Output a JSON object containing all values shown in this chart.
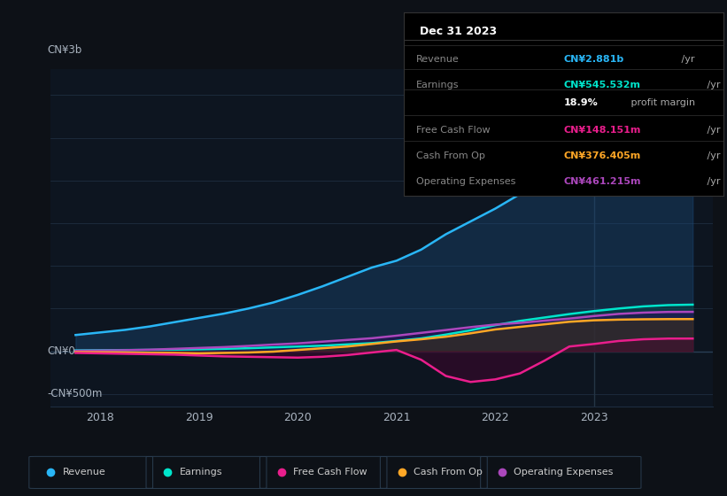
{
  "bg_color": "#0d1117",
  "plot_bg_color": "#0d1520",
  "grid_color": "#1e2d40",
  "text_color": "#aab4c0",
  "ylabel_top": "CN¥3b",
  "ylabel_bottom": "-CN¥500m",
  "ylabel_zero": "CN¥0",
  "yticks": [
    -500000000,
    0,
    500000000,
    1000000000,
    1500000000,
    2000000000,
    2500000000,
    3000000000
  ],
  "ylim": [
    -650000000,
    3300000000
  ],
  "xlim": [
    2017.5,
    2024.2
  ],
  "xtick_labels": [
    "2018",
    "2019",
    "2020",
    "2021",
    "2022",
    "2023"
  ],
  "xtick_positions": [
    2018,
    2019,
    2020,
    2021,
    2022,
    2023
  ],
  "series": {
    "revenue": {
      "color": "#29b6f6",
      "fill_color": "#1a4a7a",
      "label": "Revenue",
      "x": [
        2017.75,
        2018.0,
        2018.25,
        2018.5,
        2018.75,
        2019.0,
        2019.25,
        2019.5,
        2019.75,
        2020.0,
        2020.25,
        2020.5,
        2020.75,
        2021.0,
        2021.25,
        2021.5,
        2021.75,
        2022.0,
        2022.25,
        2022.5,
        2022.75,
        2023.0,
        2023.25,
        2023.5,
        2023.75,
        2024.0
      ],
      "y": [
        190000000,
        220000000,
        250000000,
        290000000,
        340000000,
        390000000,
        440000000,
        500000000,
        570000000,
        660000000,
        760000000,
        870000000,
        980000000,
        1060000000,
        1190000000,
        1370000000,
        1520000000,
        1670000000,
        1840000000,
        2060000000,
        2290000000,
        2510000000,
        2660000000,
        2780000000,
        2850000000,
        2881000000
      ]
    },
    "earnings": {
      "color": "#00e5cc",
      "fill_color": "#004d44",
      "label": "Earnings",
      "x": [
        2017.75,
        2018.0,
        2018.25,
        2018.5,
        2018.75,
        2019.0,
        2019.25,
        2019.5,
        2019.75,
        2020.0,
        2020.25,
        2020.5,
        2020.75,
        2021.0,
        2021.25,
        2021.5,
        2021.75,
        2022.0,
        2022.25,
        2022.5,
        2022.75,
        2023.0,
        2023.25,
        2023.5,
        2023.75,
        2024.0
      ],
      "y": [
        10000000,
        12000000,
        14000000,
        16000000,
        18000000,
        22000000,
        28000000,
        35000000,
        45000000,
        55000000,
        65000000,
        80000000,
        95000000,
        120000000,
        150000000,
        195000000,
        245000000,
        305000000,
        355000000,
        395000000,
        435000000,
        470000000,
        500000000,
        525000000,
        540000000,
        545532000
      ]
    },
    "free_cash_flow": {
      "color": "#e91e8c",
      "fill_color": "#500030",
      "label": "Free Cash Flow",
      "x": [
        2017.75,
        2018.0,
        2018.25,
        2018.5,
        2018.75,
        2019.0,
        2019.25,
        2019.5,
        2019.75,
        2020.0,
        2020.25,
        2020.5,
        2020.75,
        2021.0,
        2021.25,
        2021.5,
        2021.75,
        2022.0,
        2022.25,
        2022.5,
        2022.75,
        2023.0,
        2023.25,
        2023.5,
        2023.75,
        2024.0
      ],
      "y": [
        -20000000,
        -25000000,
        -30000000,
        -35000000,
        -40000000,
        -50000000,
        -60000000,
        -65000000,
        -70000000,
        -75000000,
        -65000000,
        -45000000,
        -15000000,
        15000000,
        -100000000,
        -290000000,
        -360000000,
        -330000000,
        -260000000,
        -110000000,
        55000000,
        85000000,
        120000000,
        140000000,
        148000000,
        148151000
      ]
    },
    "cash_from_op": {
      "color": "#ffa726",
      "fill_color": "#4d3500",
      "label": "Cash From Op",
      "x": [
        2017.75,
        2018.0,
        2018.25,
        2018.5,
        2018.75,
        2019.0,
        2019.25,
        2019.5,
        2019.75,
        2020.0,
        2020.25,
        2020.5,
        2020.75,
        2021.0,
        2021.25,
        2021.5,
        2021.75,
        2022.0,
        2022.25,
        2022.5,
        2022.75,
        2023.0,
        2023.25,
        2023.5,
        2023.75,
        2024.0
      ],
      "y": [
        -10000000,
        -12000000,
        -15000000,
        -18000000,
        -20000000,
        -25000000,
        -20000000,
        -15000000,
        -5000000,
        15000000,
        35000000,
        55000000,
        85000000,
        115000000,
        140000000,
        170000000,
        210000000,
        255000000,
        285000000,
        315000000,
        345000000,
        362000000,
        370000000,
        374000000,
        376000000,
        376405000
      ]
    },
    "operating_expenses": {
      "color": "#ab47bc",
      "fill_color": "#300060",
      "label": "Operating Expenses",
      "x": [
        2017.75,
        2018.0,
        2018.25,
        2018.5,
        2018.75,
        2019.0,
        2019.25,
        2019.5,
        2019.75,
        2020.0,
        2020.25,
        2020.5,
        2020.75,
        2021.0,
        2021.25,
        2021.5,
        2021.75,
        2022.0,
        2022.25,
        2022.5,
        2022.75,
        2023.0,
        2023.25,
        2023.5,
        2023.75,
        2024.0
      ],
      "y": [
        5000000,
        8000000,
        12000000,
        18000000,
        28000000,
        38000000,
        48000000,
        62000000,
        78000000,
        92000000,
        112000000,
        132000000,
        152000000,
        182000000,
        215000000,
        248000000,
        282000000,
        312000000,
        332000000,
        358000000,
        382000000,
        412000000,
        437000000,
        452000000,
        460000000,
        461215000
      ]
    }
  },
  "info_box": {
    "title": "Dec 31 2023",
    "rows": [
      {
        "label": "Revenue",
        "value": "CN¥2.881b",
        "unit": " /yr",
        "value_color": "#29b6f6"
      },
      {
        "label": "Earnings",
        "value": "CN¥545.532m",
        "unit": " /yr",
        "value_color": "#00e5cc"
      },
      {
        "label": "",
        "value": "18.9%",
        "unit": " profit margin",
        "value_color": "#ffffff"
      },
      {
        "label": "Free Cash Flow",
        "value": "CN¥148.151m",
        "unit": " /yr",
        "value_color": "#e91e8c"
      },
      {
        "label": "Cash From Op",
        "value": "CN¥376.405m",
        "unit": " /yr",
        "value_color": "#ffa726"
      },
      {
        "label": "Operating Expenses",
        "value": "CN¥461.215m",
        "unit": " /yr",
        "value_color": "#ab47bc"
      }
    ]
  },
  "legend": [
    {
      "label": "Revenue",
      "color": "#29b6f6"
    },
    {
      "label": "Earnings",
      "color": "#00e5cc"
    },
    {
      "label": "Free Cash Flow",
      "color": "#e91e8c"
    },
    {
      "label": "Cash From Op",
      "color": "#ffa726"
    },
    {
      "label": "Operating Expenses",
      "color": "#ab47bc"
    }
  ]
}
